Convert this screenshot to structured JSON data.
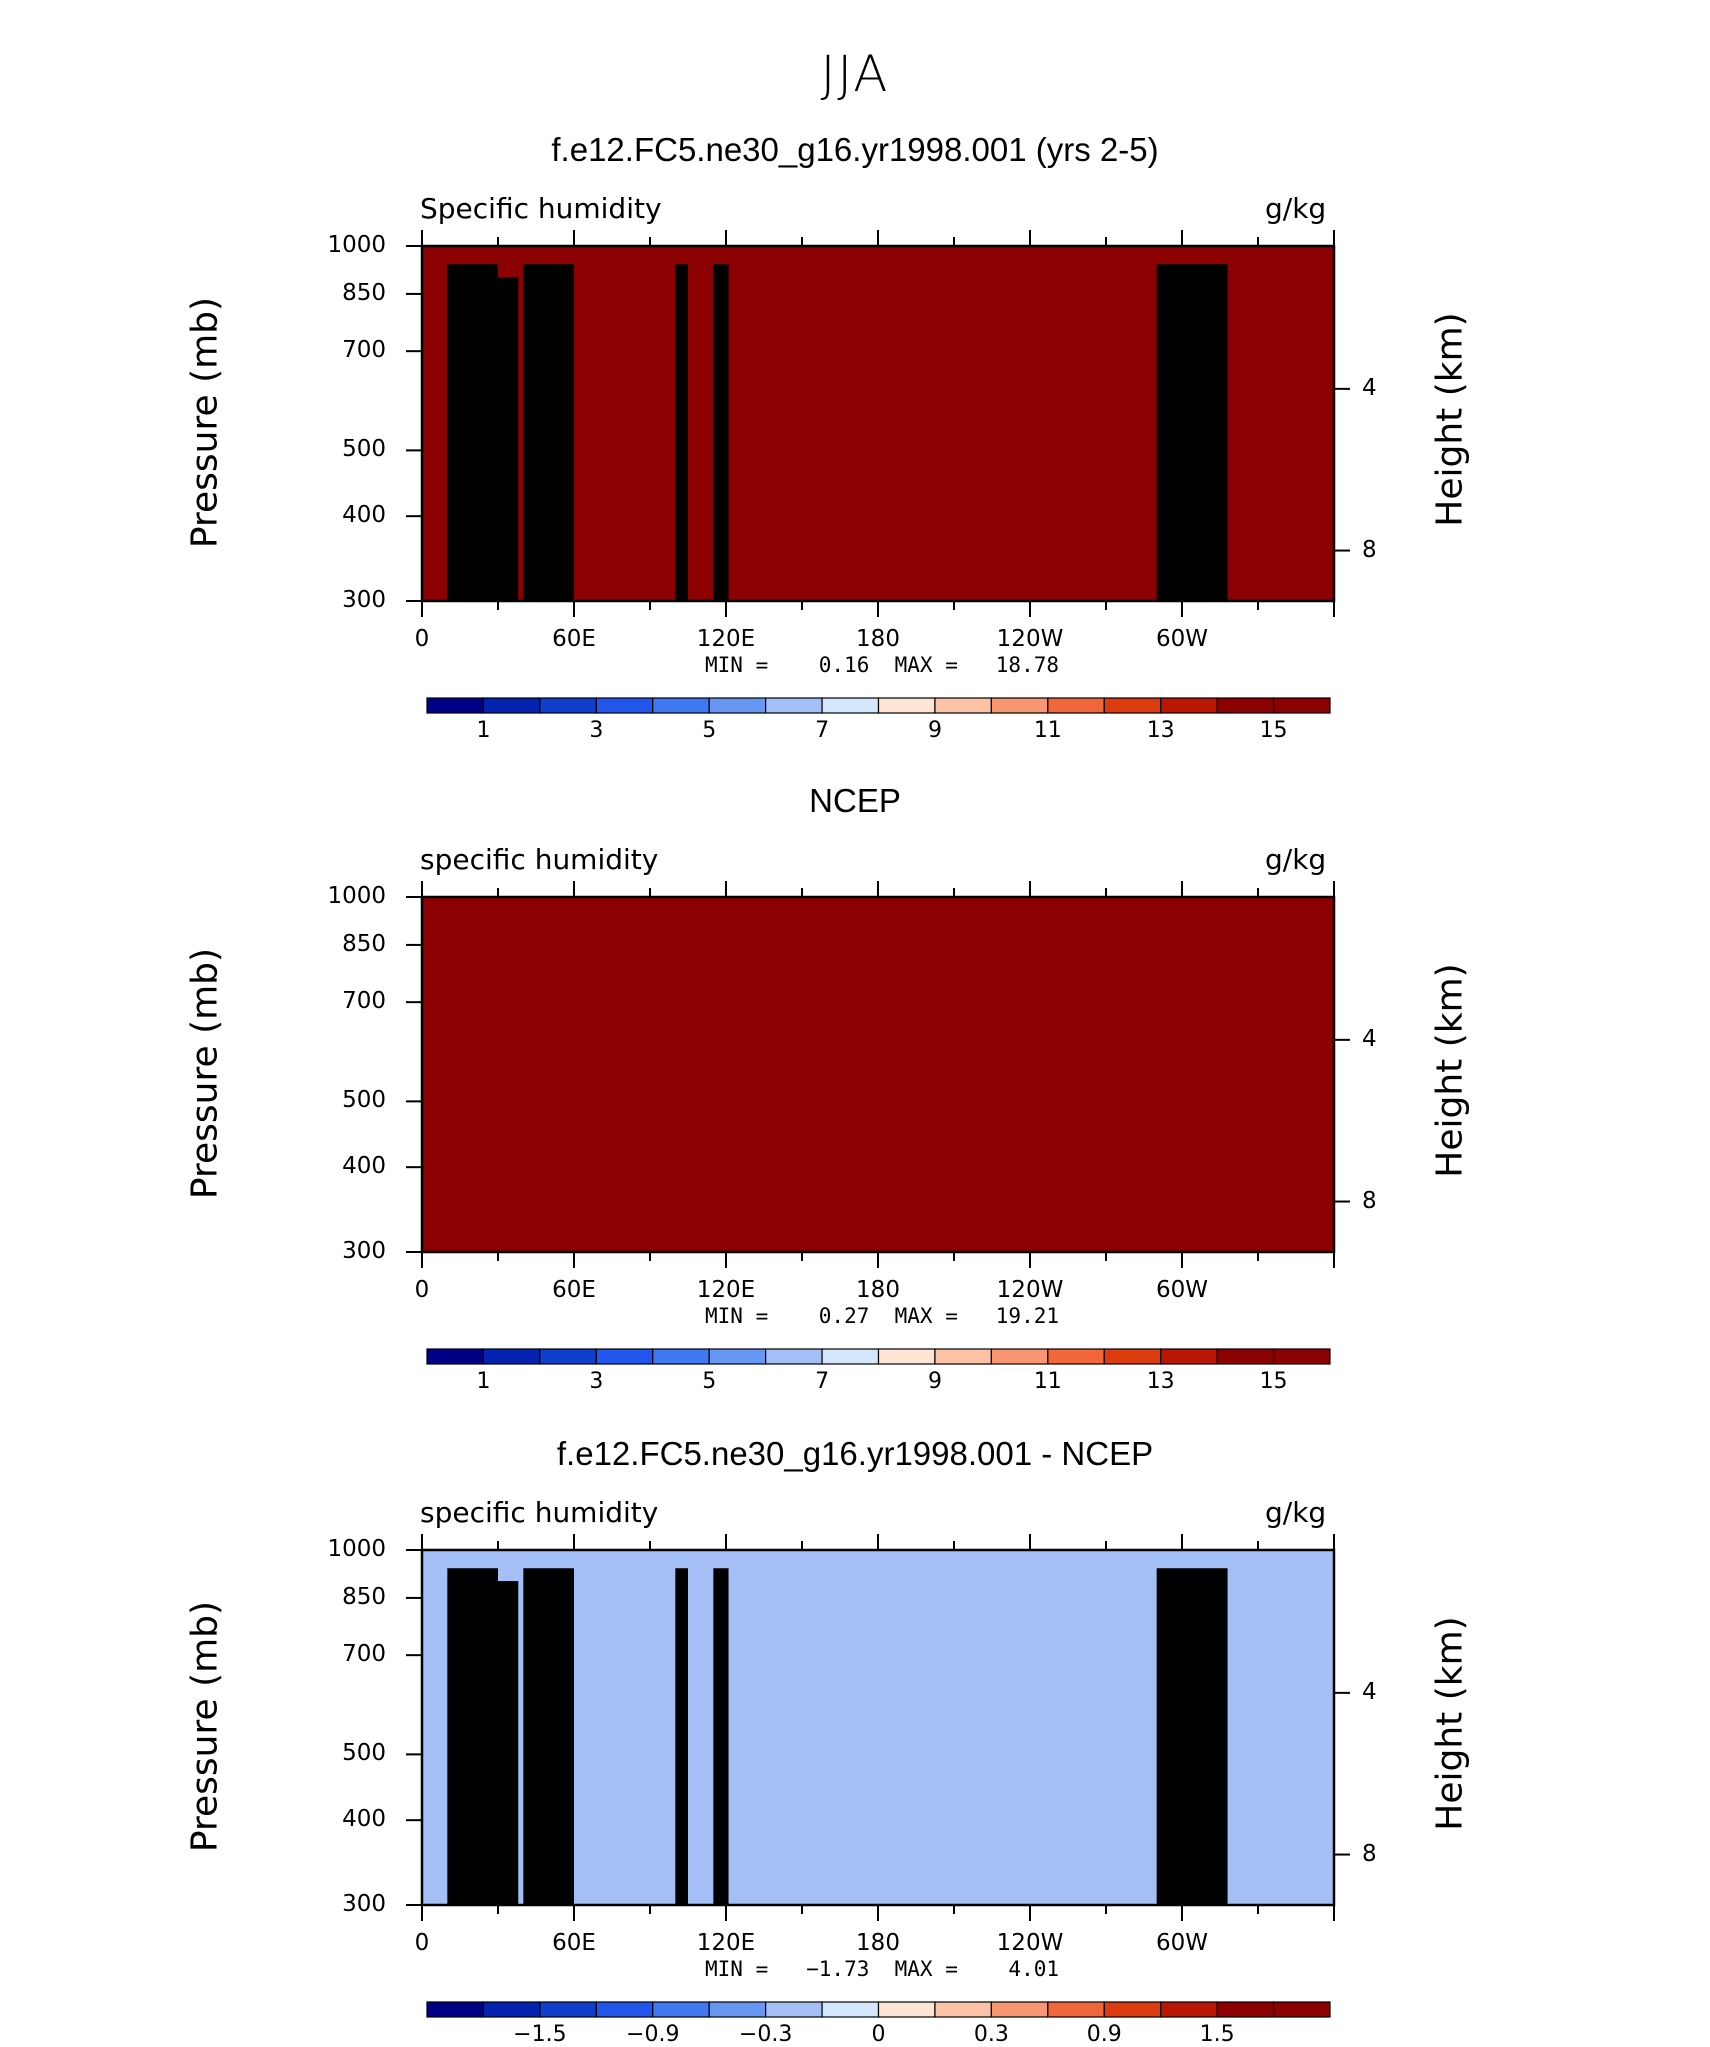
{
  "figure": {
    "title": "JJA"
  },
  "colors": {
    "cmap14": [
      "#000086",
      "#0422b0",
      "#0f3fcd",
      "#2155ec",
      "#3f78f0",
      "#6796f3",
      "#a3bff6",
      "#d4e6fb",
      "#fde6d6",
      "#fbc2a6",
      "#f79671",
      "#f1663b",
      "#dd3c0f",
      "#b91704",
      "#8b0000"
    ],
    "cmap_diff": [
      "#000086",
      "#0422b0",
      "#0f3fcd",
      "#2155ec",
      "#3f78f0",
      "#6796f3",
      "#a3bff6",
      "#d4e6fb",
      "#fde6d6",
      "#fbc2a6",
      "#f79671",
      "#f1663b",
      "#dd3c0f",
      "#b91704",
      "#8b0000"
    ]
  },
  "chart_data": [
    {
      "type": "heatmap",
      "title": "f.e12.FC5.ne30_g16.yr1998.001 (yrs 2-5)",
      "left_label": "Specific humidity",
      "units": "g/kg",
      "ylabel": "Pressure (mb)",
      "ylabel_right": "Height (km)",
      "x_ticks": [
        "0",
        "60E",
        "120E",
        "180",
        "120W",
        "60W"
      ],
      "y_ticks": [
        "300",
        "400",
        "500",
        "700",
        "850",
        "1000"
      ],
      "right_ticks": [
        "8",
        "4"
      ],
      "min_max": "MIN =    0.16  MAX =   18.78",
      "xlim_deg_east": [
        0,
        360
      ],
      "ylim_mb": [
        1000,
        300
      ],
      "colorbar_labels": [
        "1",
        "3",
        "5",
        "7",
        "9",
        "11",
        "13",
        "15"
      ],
      "colorbar_levels": [
        0,
        1,
        2,
        3,
        4,
        5,
        6,
        7,
        8,
        9,
        10,
        11,
        12,
        13,
        14,
        15
      ],
      "surface_level_of_max_class_mb": [
        [
          0,
          1000
        ],
        [
          10,
          960
        ],
        [
          20,
          975
        ],
        [
          30,
          945
        ],
        [
          40,
          965
        ],
        [
          60,
          940
        ],
        [
          80,
          955
        ],
        [
          100,
          965
        ],
        [
          110,
          975
        ],
        [
          120,
          985
        ],
        [
          150,
          975
        ],
        [
          180,
          990
        ],
        [
          210,
          1000
        ],
        [
          240,
          1000
        ],
        [
          260,
          990
        ],
        [
          270,
          980
        ],
        [
          283,
          955
        ],
        [
          295,
          960
        ],
        [
          310,
          980
        ],
        [
          340,
          1000
        ],
        [
          360,
          1000
        ]
      ]
    },
    {
      "type": "heatmap",
      "title": "NCEP",
      "left_label": "specific humidity",
      "units": "g/kg",
      "ylabel": "Pressure (mb)",
      "ylabel_right": "Height (km)",
      "x_ticks": [
        "0",
        "60E",
        "120E",
        "180",
        "120W",
        "60W"
      ],
      "y_ticks": [
        "300",
        "400",
        "500",
        "700",
        "850",
        "1000"
      ],
      "right_ticks": [
        "8",
        "4"
      ],
      "min_max": "MIN =    0.27  MAX =   19.21",
      "xlim_deg_east": [
        0,
        360
      ],
      "ylim_mb": [
        1000,
        300
      ],
      "colorbar_labels": [
        "1",
        "3",
        "5",
        "7",
        "9",
        "11",
        "13",
        "15"
      ],
      "colorbar_levels": [
        0,
        1,
        2,
        3,
        4,
        5,
        6,
        7,
        8,
        9,
        10,
        11,
        12,
        13,
        14,
        15
      ]
    },
    {
      "type": "heatmap",
      "title": "f.e12.FC5.ne30_g16.yr1998.001 - NCEP",
      "left_label": "specific humidity",
      "units": "g/kg",
      "ylabel": "Pressure (mb)",
      "ylabel_right": "Height (km)",
      "x_ticks": [
        "0",
        "60E",
        "120E",
        "180",
        "120W",
        "60W"
      ],
      "y_ticks": [
        "300",
        "400",
        "500",
        "700",
        "850",
        "1000"
      ],
      "right_ticks": [
        "8",
        "4"
      ],
      "min_max": "MIN =   −1.73  MAX =    4.01",
      "xlim_deg_east": [
        0,
        360
      ],
      "ylim_mb": [
        1000,
        300
      ],
      "colorbar_labels": [
        "−1.5",
        "−0.9",
        "−0.3",
        "0",
        "0.3",
        "0.9",
        "1.5"
      ],
      "colorbar_levels": [
        -1.8,
        -1.5,
        -1.2,
        -0.9,
        -0.6,
        -0.3,
        -0.1,
        0,
        0.1,
        0.3,
        0.6,
        0.9,
        1.2,
        1.5,
        1.8
      ]
    }
  ]
}
